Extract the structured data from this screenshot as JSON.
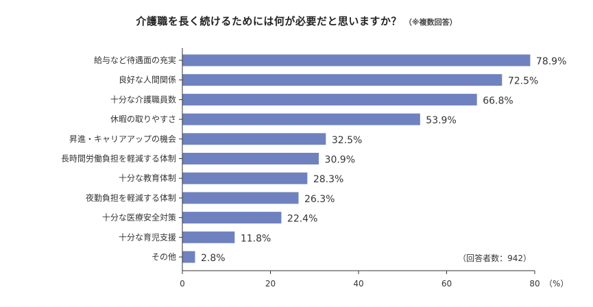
{
  "chart_data": {
    "type": "bar",
    "orientation": "horizontal",
    "title": "介護職を長く続けるためには何が必要だと思いますか？",
    "subtitle": "（※複数回答）",
    "categories": [
      "給与など待遇面の充実",
      "良好な人間関係",
      "十分な介護職員数",
      "休暇の取りやすさ",
      "昇進・キャリアアップの機会",
      "長時間労働負担を軽減する体制",
      "十分な教育体制",
      "夜勤負担を軽減する体制",
      "十分な医療安全対策",
      "十分な育児支援",
      "その他"
    ],
    "values": [
      78.9,
      72.5,
      66.8,
      53.9,
      32.5,
      30.9,
      28.3,
      26.3,
      22.4,
      11.8,
      2.8
    ],
    "value_labels": [
      "78.9%",
      "72.5%",
      "66.8%",
      "53.9%",
      "32.5%",
      "30.9%",
      "28.3%",
      "26.3%",
      "22.4%",
      "11.8%",
      "2.8%"
    ],
    "xlim": [
      0,
      80
    ],
    "xticks": [
      "0",
      "20",
      "40",
      "60",
      "80"
    ],
    "xunit": "（%）",
    "note": "（回答者数：942）",
    "bar_color": "#6f82bf",
    "grid": false
  }
}
